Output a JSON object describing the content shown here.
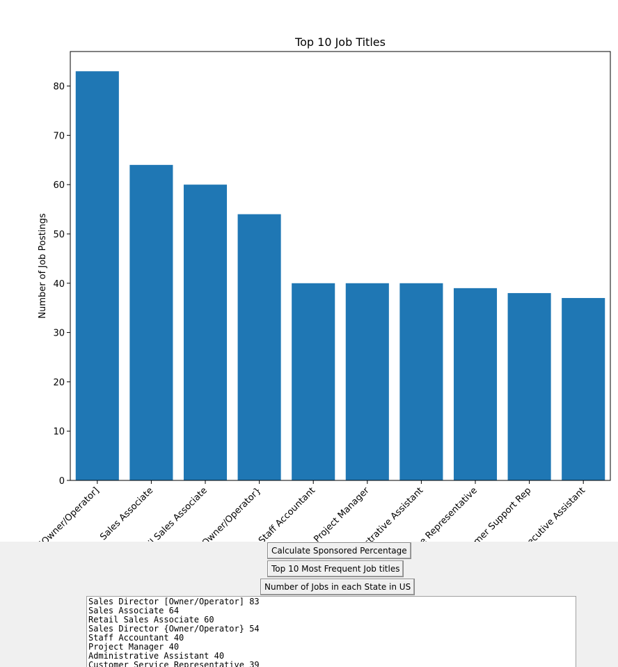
{
  "chart_data": {
    "type": "bar",
    "title": "Top 10 Job Titles",
    "xlabel": "",
    "ylabel": "Number of Job Postings",
    "categories": [
      "Sales Director [Owner/Operator]",
      "Sales Associate",
      "Retail Sales Associate",
      "Sales Director {Owner/Operator}",
      "Staff Accountant",
      "Project Manager",
      "Administrative Assistant",
      "Customer Service Representative",
      "Customer Support Rep",
      "Executive Assistant"
    ],
    "values": [
      83,
      64,
      60,
      54,
      40,
      40,
      40,
      39,
      38,
      37
    ],
    "ylim": [
      0,
      87
    ],
    "yticks": [
      0,
      10,
      20,
      30,
      40,
      50,
      60,
      70,
      80
    ],
    "bar_color": "#1f77b4",
    "grid": false,
    "legend": "none"
  },
  "buttons": {
    "sponsored": "Calculate Sponsored Percentage",
    "top10": "Top 10 Most Frequent Job titles",
    "states": "Number of Jobs in each State in US"
  },
  "output_lines": [
    "Sales Director [Owner/Operator] 83",
    "Sales Associate 64",
    "Retail Sales Associate 60",
    "Sales Director {Owner/Operator} 54",
    "Staff Accountant 40",
    "Project Manager 40",
    "Administrative Assistant 40",
    "Customer Service Representative 39"
  ]
}
